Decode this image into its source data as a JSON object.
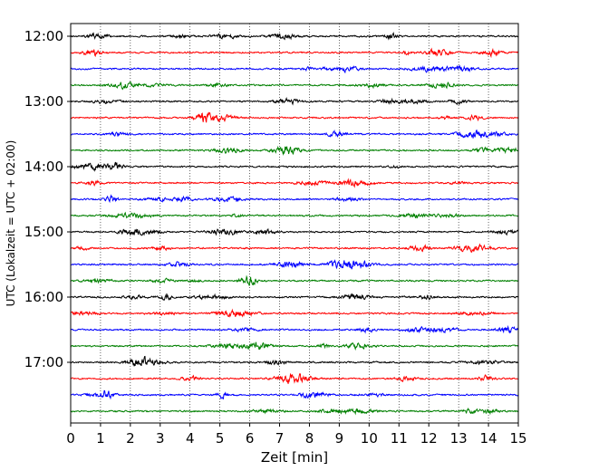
{
  "chart_data": {
    "type": "line",
    "xlabel": "Zeit  [min]",
    "ylabel": "UTC (Lokalzeit = UTC + 02:00)",
    "xlim": [
      0,
      15
    ],
    "x_ticks": [
      0,
      1,
      2,
      3,
      4,
      5,
      6,
      7,
      8,
      9,
      10,
      11,
      12,
      13,
      14,
      15
    ],
    "x_tick_labels": [
      "0",
      "1",
      "2",
      "3",
      "4",
      "5",
      "6",
      "7",
      "8",
      "9",
      "10",
      "11",
      "12",
      "13",
      "14",
      "15"
    ],
    "y_tick_labels": [
      "12:00",
      "13:00",
      "14:00",
      "15:00",
      "16:00",
      "17:00"
    ],
    "grid": "vertical dotted",
    "minutes_per_trace": 15,
    "trace_colors": [
      "#000000",
      "#ff0000",
      "#0000ff",
      "#008000"
    ],
    "traces": [
      {
        "start": "12:00"
      },
      {
        "start": "12:15"
      },
      {
        "start": "12:30"
      },
      {
        "start": "12:45"
      },
      {
        "start": "13:00"
      },
      {
        "start": "13:15"
      },
      {
        "start": "13:30"
      },
      {
        "start": "13:45"
      },
      {
        "start": "14:00"
      },
      {
        "start": "14:15"
      },
      {
        "start": "14:30"
      },
      {
        "start": "14:45"
      },
      {
        "start": "15:00"
      },
      {
        "start": "15:15"
      },
      {
        "start": "15:30"
      },
      {
        "start": "15:45"
      },
      {
        "start": "16:00"
      },
      {
        "start": "16:15"
      },
      {
        "start": "16:30"
      },
      {
        "start": "16:45"
      },
      {
        "start": "17:00"
      },
      {
        "start": "17:15"
      },
      {
        "start": "17:30"
      },
      {
        "start": "17:45"
      }
    ]
  }
}
